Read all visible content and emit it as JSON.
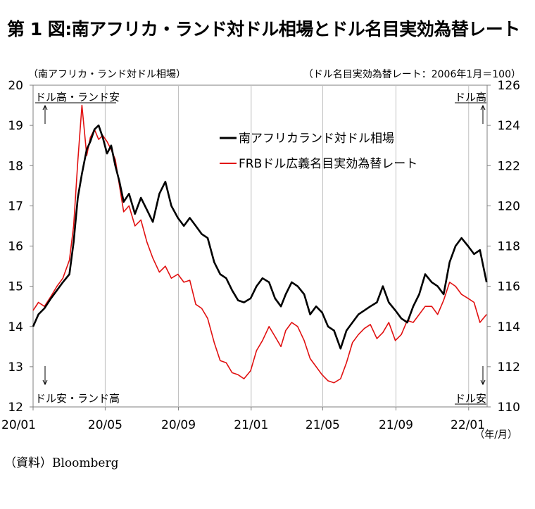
{
  "title": "第 1 図:南アフリカ・ランド対ドル相場とドル名目実効為替レート",
  "source": "（資料）Bloomberg",
  "chart_data": {
    "type": "line",
    "left_axis_title": "（南アフリカ・ランド対ドル相場）",
    "right_axis_title": "（ドル名目実効為替レート：2006年1月＝100）",
    "x_unit": "（年/月）",
    "x_ticks": [
      "20/01",
      "20/05",
      "20/09",
      "21/01",
      "21/05",
      "21/09",
      "22/01"
    ],
    "left_axis": {
      "min": 12,
      "max": 20,
      "ticks": [
        12,
        13,
        14,
        15,
        16,
        17,
        18,
        19,
        20
      ]
    },
    "right_axis": {
      "min": 110,
      "max": 126,
      "ticks": [
        110,
        112,
        114,
        116,
        118,
        120,
        122,
        124,
        126
      ]
    },
    "annotations": {
      "top_left": "ドル高・ランド安",
      "bottom_left": "ドル安・ランド高",
      "top_right": "ドル高",
      "bottom_right": "ドル安"
    },
    "series": [
      {
        "name": "南アフリカランド対ドル相場",
        "axis": "left",
        "color": "#000000",
        "x": [
          "2020-01-01",
          "2020-01-10",
          "2020-01-20",
          "2020-01-31",
          "2020-02-10",
          "2020-02-20",
          "2020-03-02",
          "2020-03-09",
          "2020-03-16",
          "2020-03-23",
          "2020-03-31",
          "2020-04-06",
          "2020-04-13",
          "2020-04-20",
          "2020-04-27",
          "2020-05-04",
          "2020-05-11",
          "2020-05-18",
          "2020-05-25",
          "2020-06-01",
          "2020-06-10",
          "2020-06-20",
          "2020-06-30",
          "2020-07-10",
          "2020-07-20",
          "2020-07-31",
          "2020-08-10",
          "2020-08-20",
          "2020-08-31",
          "2020-09-10",
          "2020-09-20",
          "2020-09-30",
          "2020-10-10",
          "2020-10-20",
          "2020-10-31",
          "2020-11-10",
          "2020-11-20",
          "2020-11-30",
          "2020-12-10",
          "2020-12-20",
          "2020-12-31",
          "2021-01-10",
          "2021-01-20",
          "2021-01-31",
          "2021-02-10",
          "2021-02-20",
          "2021-02-28",
          "2021-03-10",
          "2021-03-20",
          "2021-03-31",
          "2021-04-10",
          "2021-04-20",
          "2021-04-30",
          "2021-05-10",
          "2021-05-20",
          "2021-05-31",
          "2021-06-10",
          "2021-06-20",
          "2021-06-30",
          "2021-07-10",
          "2021-07-20",
          "2021-07-31",
          "2021-08-10",
          "2021-08-20",
          "2021-08-31",
          "2021-09-10",
          "2021-09-20",
          "2021-09-30",
          "2021-10-10",
          "2021-10-20",
          "2021-10-31",
          "2021-11-10",
          "2021-11-20",
          "2021-11-30",
          "2021-12-10",
          "2021-12-20",
          "2021-12-31",
          "2022-01-10",
          "2022-01-20",
          "2022-01-31"
        ],
        "values": [
          14.0,
          14.3,
          14.45,
          14.7,
          14.9,
          15.1,
          15.3,
          16.1,
          17.2,
          17.8,
          18.4,
          18.6,
          18.9,
          19.0,
          18.7,
          18.3,
          18.5,
          18.0,
          17.6,
          17.1,
          17.3,
          16.8,
          17.2,
          16.9,
          16.6,
          17.3,
          17.6,
          17.0,
          16.7,
          16.5,
          16.7,
          16.5,
          16.3,
          16.2,
          15.6,
          15.3,
          15.2,
          14.9,
          14.65,
          14.6,
          14.7,
          15.0,
          15.2,
          15.1,
          14.7,
          14.5,
          14.8,
          15.1,
          15.0,
          14.8,
          14.3,
          14.5,
          14.35,
          14.0,
          13.9,
          13.45,
          13.9,
          14.1,
          14.3,
          14.4,
          14.5,
          14.6,
          15.0,
          14.6,
          14.4,
          14.2,
          14.1,
          14.5,
          14.8,
          15.3,
          15.1,
          15.0,
          14.8,
          15.6,
          16.0,
          16.2,
          16.0,
          15.8,
          15.9,
          15.1
        ]
      },
      {
        "name": "FRBドル広義名目実効為替レート",
        "axis": "right",
        "color": "#e11010",
        "x": [
          "2020-01-01",
          "2020-01-10",
          "2020-01-20",
          "2020-01-31",
          "2020-02-10",
          "2020-02-20",
          "2020-03-02",
          "2020-03-09",
          "2020-03-16",
          "2020-03-23",
          "2020-03-31",
          "2020-04-06",
          "2020-04-13",
          "2020-04-20",
          "2020-04-27",
          "2020-05-04",
          "2020-05-11",
          "2020-05-18",
          "2020-05-25",
          "2020-06-01",
          "2020-06-10",
          "2020-06-20",
          "2020-06-30",
          "2020-07-10",
          "2020-07-20",
          "2020-07-31",
          "2020-08-10",
          "2020-08-20",
          "2020-08-31",
          "2020-09-10",
          "2020-09-20",
          "2020-09-30",
          "2020-10-10",
          "2020-10-20",
          "2020-10-31",
          "2020-11-10",
          "2020-11-20",
          "2020-11-30",
          "2020-12-10",
          "2020-12-20",
          "2020-12-31",
          "2021-01-10",
          "2021-01-20",
          "2021-01-31",
          "2021-02-10",
          "2021-02-20",
          "2021-02-28",
          "2021-03-10",
          "2021-03-20",
          "2021-03-31",
          "2021-04-10",
          "2021-04-20",
          "2021-04-30",
          "2021-05-10",
          "2021-05-20",
          "2021-05-31",
          "2021-06-10",
          "2021-06-20",
          "2021-06-30",
          "2021-07-10",
          "2021-07-20",
          "2021-07-31",
          "2021-08-10",
          "2021-08-20",
          "2021-08-31",
          "2021-09-10",
          "2021-09-20",
          "2021-09-30",
          "2021-10-10",
          "2021-10-20",
          "2021-10-31",
          "2021-11-10",
          "2021-11-20",
          "2021-11-30",
          "2021-12-10",
          "2021-12-20",
          "2021-12-31",
          "2022-01-10",
          "2022-01-20",
          "2022-01-31"
        ],
        "values": [
          114.8,
          115.2,
          115.0,
          115.5,
          116.0,
          116.4,
          117.3,
          119.0,
          122.2,
          125.0,
          122.5,
          123.4,
          123.8,
          123.3,
          123.5,
          123.2,
          122.8,
          122.3,
          121.0,
          119.7,
          120.0,
          119.0,
          119.3,
          118.2,
          117.4,
          116.7,
          117.0,
          116.4,
          116.6,
          116.2,
          116.3,
          115.1,
          114.9,
          114.4,
          113.2,
          112.3,
          112.2,
          111.7,
          111.6,
          111.4,
          111.8,
          112.8,
          113.3,
          114.0,
          113.5,
          113.0,
          113.8,
          114.2,
          114.0,
          113.3,
          112.4,
          112.0,
          111.6,
          111.3,
          111.2,
          111.4,
          112.2,
          113.2,
          113.6,
          113.9,
          114.1,
          113.4,
          113.7,
          114.2,
          113.3,
          113.6,
          114.3,
          114.2,
          114.6,
          115.0,
          115.0,
          114.6,
          115.3,
          116.2,
          116.0,
          115.6,
          115.4,
          115.2,
          114.2,
          114.6
        ]
      }
    ]
  }
}
